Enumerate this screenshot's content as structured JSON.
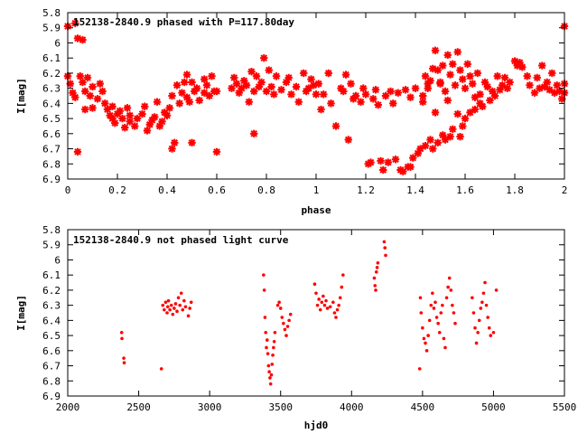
{
  "chart_data": [
    {
      "type": "scatter",
      "title": "152138-2840.9 phased with P=117.80day",
      "xlabel": "phase",
      "ylabel": "I[mag]",
      "xlim": [
        0,
        2
      ],
      "ylim": [
        5.8,
        6.9
      ],
      "y_inverted": true,
      "grid": false,
      "legend": "none",
      "color": "#ff0000",
      "marker": "asterisk",
      "xticks": [
        "0",
        "0.2",
        "0.4",
        "0.6",
        "0.8",
        "1",
        "1.2",
        "1.4",
        "1.6",
        "1.8",
        "2"
      ],
      "yticks": [
        "5.8",
        "5.9",
        "6",
        "6.1",
        "6.2",
        "6.3",
        "6.4",
        "6.5",
        "6.6",
        "6.7",
        "6.8",
        "6.9"
      ],
      "points": [
        [
          0.0,
          5.89
        ],
        [
          0.03,
          5.87
        ],
        [
          0.04,
          5.97
        ],
        [
          0.06,
          5.98
        ],
        [
          0.0,
          6.22
        ],
        [
          0.01,
          6.27
        ],
        [
          0.02,
          6.33
        ],
        [
          0.03,
          6.36
        ],
        [
          0.04,
          6.72
        ],
        [
          0.05,
          6.22
        ],
        [
          0.06,
          6.26
        ],
        [
          0.07,
          6.32
        ],
        [
          0.07,
          6.44
        ],
        [
          0.08,
          6.23
        ],
        [
          0.09,
          6.35
        ],
        [
          0.1,
          6.29
        ],
        [
          0.1,
          6.43
        ],
        [
          0.12,
          6.37
        ],
        [
          0.13,
          6.27
        ],
        [
          0.14,
          6.32
        ],
        [
          0.15,
          6.4
        ],
        [
          0.16,
          6.44
        ],
        [
          0.17,
          6.48
        ],
        [
          0.18,
          6.5
        ],
        [
          0.18,
          6.42
        ],
        [
          0.19,
          6.53
        ],
        [
          0.2,
          6.47
        ],
        [
          0.21,
          6.45
        ],
        [
          0.22,
          6.5
        ],
        [
          0.23,
          6.56
        ],
        [
          0.24,
          6.43
        ],
        [
          0.25,
          6.52
        ],
        [
          0.25,
          6.48
        ],
        [
          0.27,
          6.55
        ],
        [
          0.28,
          6.5
        ],
        [
          0.3,
          6.47
        ],
        [
          0.31,
          6.42
        ],
        [
          0.32,
          6.58
        ],
        [
          0.33,
          6.54
        ],
        [
          0.34,
          6.51
        ],
        [
          0.35,
          6.49
        ],
        [
          0.36,
          6.39
        ],
        [
          0.37,
          6.55
        ],
        [
          0.38,
          6.52
        ],
        [
          0.39,
          6.46
        ],
        [
          0.4,
          6.48
        ],
        [
          0.41,
          6.43
        ],
        [
          0.42,
          6.35
        ],
        [
          0.42,
          6.7
        ],
        [
          0.43,
          6.66
        ],
        [
          0.44,
          6.28
        ],
        [
          0.45,
          6.4
        ],
        [
          0.46,
          6.33
        ],
        [
          0.47,
          6.26
        ],
        [
          0.48,
          6.36
        ],
        [
          0.48,
          6.21
        ],
        [
          0.49,
          6.39
        ],
        [
          0.5,
          6.26
        ],
        [
          0.5,
          6.66
        ],
        [
          0.51,
          6.32
        ],
        [
          0.52,
          6.3
        ],
        [
          0.53,
          6.38
        ],
        [
          0.55,
          6.33
        ],
        [
          0.55,
          6.24
        ],
        [
          0.56,
          6.28
        ],
        [
          0.57,
          6.35
        ],
        [
          0.58,
          6.22
        ],
        [
          0.59,
          6.32
        ],
        [
          0.6,
          6.32
        ],
        [
          0.6,
          6.72
        ],
        [
          0.66,
          6.3
        ],
        [
          0.67,
          6.23
        ],
        [
          0.68,
          6.27
        ],
        [
          0.69,
          6.33
        ],
        [
          0.7,
          6.3
        ],
        [
          0.71,
          6.25
        ],
        [
          0.72,
          6.28
        ],
        [
          0.73,
          6.39
        ],
        [
          0.74,
          6.19
        ],
        [
          0.75,
          6.32
        ],
        [
          0.75,
          6.6
        ],
        [
          0.76,
          6.22
        ],
        [
          0.77,
          6.29
        ],
        [
          0.78,
          6.26
        ],
        [
          0.79,
          6.1
        ],
        [
          0.8,
          6.32
        ],
        [
          0.81,
          6.18
        ],
        [
          0.82,
          6.29
        ],
        [
          0.83,
          6.34
        ],
        [
          0.84,
          6.22
        ],
        [
          0.86,
          6.31
        ],
        [
          0.88,
          6.26
        ],
        [
          0.89,
          6.23
        ],
        [
          0.9,
          6.34
        ],
        [
          0.92,
          6.29
        ],
        [
          0.93,
          6.39
        ],
        [
          0.95,
          6.2
        ],
        [
          0.96,
          6.32
        ],
        [
          0.97,
          6.3
        ],
        [
          0.98,
          6.24
        ],
        [
          0.99,
          6.28
        ],
        [
          1.0,
          6.34
        ],
        [
          1.01,
          6.27
        ],
        [
          1.02,
          6.44
        ],
        [
          1.03,
          6.34
        ],
        [
          1.05,
          6.2
        ],
        [
          1.06,
          6.4
        ],
        [
          1.08,
          6.55
        ],
        [
          1.1,
          6.3
        ],
        [
          1.11,
          6.32
        ],
        [
          1.12,
          6.21
        ],
        [
          1.13,
          6.64
        ],
        [
          1.14,
          6.27
        ],
        [
          1.15,
          6.37
        ],
        [
          1.16,
          6.35
        ],
        [
          1.18,
          6.39
        ],
        [
          1.19,
          6.3
        ],
        [
          1.2,
          6.34
        ],
        [
          1.21,
          6.8
        ],
        [
          1.22,
          6.79
        ],
        [
          1.23,
          6.37
        ],
        [
          1.24,
          6.31
        ],
        [
          1.25,
          6.41
        ],
        [
          1.26,
          6.78
        ],
        [
          1.27,
          6.84
        ],
        [
          1.28,
          6.35
        ],
        [
          1.29,
          6.79
        ],
        [
          1.3,
          6.32
        ],
        [
          1.31,
          6.4
        ],
        [
          1.32,
          6.77
        ],
        [
          1.33,
          6.33
        ],
        [
          1.34,
          6.84
        ],
        [
          1.35,
          6.85
        ],
        [
          1.36,
          6.31
        ],
        [
          1.37,
          6.82
        ],
        [
          1.38,
          6.82
        ],
        [
          1.38,
          6.36
        ],
        [
          1.39,
          6.76
        ],
        [
          1.4,
          6.3
        ],
        [
          1.41,
          6.73
        ],
        [
          1.42,
          6.7
        ],
        [
          1.43,
          6.39
        ],
        [
          1.44,
          6.68
        ],
        [
          1.45,
          6.27
        ],
        [
          1.46,
          6.64
        ],
        [
          1.47,
          6.7
        ],
        [
          1.48,
          6.46
        ],
        [
          1.49,
          6.66
        ],
        [
          1.5,
          6.27
        ],
        [
          1.51,
          6.61
        ],
        [
          1.52,
          6.64
        ],
        [
          1.53,
          6.38
        ],
        [
          1.54,
          6.62
        ],
        [
          1.55,
          6.57
        ],
        [
          1.57,
          6.47
        ],
        [
          1.58,
          6.62
        ],
        [
          1.59,
          6.55
        ],
        [
          1.6,
          6.5
        ],
        [
          1.62,
          6.46
        ],
        [
          1.64,
          6.44
        ],
        [
          1.66,
          6.4
        ],
        [
          1.43,
          6.35
        ],
        [
          1.44,
          6.22
        ],
        [
          1.45,
          6.3
        ],
        [
          1.46,
          6.25
        ],
        [
          1.47,
          6.17
        ],
        [
          1.48,
          6.05
        ],
        [
          1.49,
          6.18
        ],
        [
          1.5,
          6.26
        ],
        [
          1.51,
          6.15
        ],
        [
          1.52,
          6.32
        ],
        [
          1.53,
          6.08
        ],
        [
          1.54,
          6.21
        ],
        [
          1.55,
          6.14
        ],
        [
          1.56,
          6.28
        ],
        [
          1.57,
          6.06
        ],
        [
          1.58,
          6.18
        ],
        [
          1.59,
          6.24
        ],
        [
          1.6,
          6.3
        ],
        [
          1.61,
          6.14
        ],
        [
          1.62,
          6.22
        ],
        [
          1.63,
          6.27
        ],
        [
          1.64,
          6.36
        ],
        [
          1.65,
          6.2
        ],
        [
          1.66,
          6.34
        ],
        [
          1.67,
          6.42
        ],
        [
          1.68,
          6.26
        ],
        [
          1.69,
          6.29
        ],
        [
          1.7,
          6.38
        ],
        [
          1.71,
          6.32
        ],
        [
          1.72,
          6.35
        ],
        [
          1.73,
          6.22
        ],
        [
          1.74,
          6.31
        ],
        [
          1.75,
          6.28
        ],
        [
          1.76,
          6.23
        ],
        [
          1.77,
          6.3
        ],
        [
          1.78,
          6.26
        ],
        [
          1.8,
          6.12
        ],
        [
          1.81,
          6.15
        ],
        [
          1.82,
          6.13
        ],
        [
          1.83,
          6.16
        ],
        [
          1.85,
          6.22
        ],
        [
          1.86,
          6.28
        ],
        [
          1.88,
          6.33
        ],
        [
          1.89,
          6.23
        ],
        [
          1.9,
          6.3
        ],
        [
          1.91,
          6.15
        ],
        [
          1.92,
          6.29
        ],
        [
          1.93,
          6.26
        ],
        [
          1.94,
          6.31
        ],
        [
          1.95,
          6.2
        ],
        [
          1.96,
          6.33
        ],
        [
          1.97,
          6.28
        ],
        [
          1.98,
          6.32
        ],
        [
          1.99,
          6.37
        ],
        [
          2.0,
          5.89
        ],
        [
          2.0,
          6.27
        ],
        [
          2.0,
          6.33
        ]
      ]
    },
    {
      "type": "scatter",
      "title": "152138-2840.9 not phased light curve",
      "xlabel": "hjd0",
      "ylabel": "I[mag]",
      "xlim": [
        2000,
        5500
      ],
      "ylim": [
        5.8,
        6.9
      ],
      "y_inverted": true,
      "grid": false,
      "legend": "none",
      "color": "#ff0000",
      "marker": "dot",
      "xticks": [
        "2000",
        "2500",
        "3000",
        "3500",
        "4000",
        "4500",
        "5000",
        "5500"
      ],
      "yticks": [
        "5.8",
        "5.9",
        "6",
        "6.1",
        "6.2",
        "6.3",
        "6.4",
        "6.5",
        "6.6",
        "6.7",
        "6.8",
        "6.9"
      ],
      "points": [
        [
          2380,
          6.48
        ],
        [
          2382,
          6.52
        ],
        [
          2395,
          6.65
        ],
        [
          2398,
          6.68
        ],
        [
          2660,
          6.72
        ],
        [
          2670,
          6.3
        ],
        [
          2680,
          6.33
        ],
        [
          2690,
          6.28
        ],
        [
          2700,
          6.35
        ],
        [
          2705,
          6.31
        ],
        [
          2710,
          6.27
        ],
        [
          2720,
          6.33
        ],
        [
          2730,
          6.3
        ],
        [
          2740,
          6.36
        ],
        [
          2750,
          6.32
        ],
        [
          2760,
          6.29
        ],
        [
          2770,
          6.34
        ],
        [
          2780,
          6.25
        ],
        [
          2790,
          6.3
        ],
        [
          2800,
          6.22
        ],
        [
          2810,
          6.33
        ],
        [
          2820,
          6.27
        ],
        [
          2830,
          6.31
        ],
        [
          2850,
          6.37
        ],
        [
          2860,
          6.32
        ],
        [
          2870,
          6.28
        ],
        [
          3380,
          6.1
        ],
        [
          3385,
          6.2
        ],
        [
          3390,
          6.38
        ],
        [
          3395,
          6.48
        ],
        [
          3400,
          6.58
        ],
        [
          3405,
          6.53
        ],
        [
          3410,
          6.62
        ],
        [
          3415,
          6.7
        ],
        [
          3420,
          6.74
        ],
        [
          3425,
          6.78
        ],
        [
          3430,
          6.82
        ],
        [
          3435,
          6.76
        ],
        [
          3440,
          6.69
        ],
        [
          3445,
          6.63
        ],
        [
          3450,
          6.58
        ],
        [
          3455,
          6.54
        ],
        [
          3460,
          6.48
        ],
        [
          3480,
          6.3
        ],
        [
          3490,
          6.28
        ],
        [
          3500,
          6.32
        ],
        [
          3510,
          6.38
        ],
        [
          3520,
          6.42
        ],
        [
          3530,
          6.46
        ],
        [
          3540,
          6.5
        ],
        [
          3550,
          6.44
        ],
        [
          3560,
          6.4
        ],
        [
          3570,
          6.36
        ],
        [
          3740,
          6.16
        ],
        [
          3750,
          6.22
        ],
        [
          3760,
          6.3
        ],
        [
          3770,
          6.26
        ],
        [
          3780,
          6.33
        ],
        [
          3790,
          6.28
        ],
        [
          3800,
          6.24
        ],
        [
          3810,
          6.3
        ],
        [
          3820,
          6.27
        ],
        [
          3830,
          6.32
        ],
        [
          3850,
          6.31
        ],
        [
          3870,
          6.28
        ],
        [
          3880,
          6.35
        ],
        [
          3890,
          6.38
        ],
        [
          3900,
          6.33
        ],
        [
          3910,
          6.3
        ],
        [
          3920,
          6.25
        ],
        [
          3930,
          6.18
        ],
        [
          3940,
          6.1
        ],
        [
          4160,
          6.12
        ],
        [
          4165,
          6.17
        ],
        [
          4170,
          6.2
        ],
        [
          4175,
          6.08
        ],
        [
          4180,
          6.05
        ],
        [
          4185,
          6.02
        ],
        [
          4230,
          5.88
        ],
        [
          4235,
          5.92
        ],
        [
          4240,
          5.97
        ],
        [
          4480,
          6.72
        ],
        [
          4485,
          6.25
        ],
        [
          4490,
          6.35
        ],
        [
          4500,
          6.45
        ],
        [
          4510,
          6.52
        ],
        [
          4520,
          6.55
        ],
        [
          4530,
          6.6
        ],
        [
          4540,
          6.5
        ],
        [
          4550,
          6.4
        ],
        [
          4560,
          6.3
        ],
        [
          4570,
          6.22
        ],
        [
          4580,
          6.32
        ],
        [
          4590,
          6.28
        ],
        [
          4600,
          6.38
        ],
        [
          4610,
          6.42
        ],
        [
          4620,
          6.48
        ],
        [
          4630,
          6.35
        ],
        [
          4640,
          6.3
        ],
        [
          4650,
          6.52
        ],
        [
          4660,
          6.58
        ],
        [
          4670,
          6.25
        ],
        [
          4680,
          6.18
        ],
        [
          4690,
          6.12
        ],
        [
          4700,
          6.2
        ],
        [
          4710,
          6.3
        ],
        [
          4720,
          6.35
        ],
        [
          4730,
          6.42
        ],
        [
          4850,
          6.25
        ],
        [
          4860,
          6.35
        ],
        [
          4870,
          6.45
        ],
        [
          4880,
          6.55
        ],
        [
          4890,
          6.48
        ],
        [
          4900,
          6.4
        ],
        [
          4910,
          6.32
        ],
        [
          4920,
          6.28
        ],
        [
          4930,
          6.22
        ],
        [
          4940,
          6.15
        ],
        [
          4950,
          6.3
        ],
        [
          4960,
          6.38
        ],
        [
          4970,
          6.45
        ],
        [
          4980,
          6.5
        ],
        [
          5000,
          6.48
        ],
        [
          5020,
          6.2
        ]
      ]
    }
  ]
}
